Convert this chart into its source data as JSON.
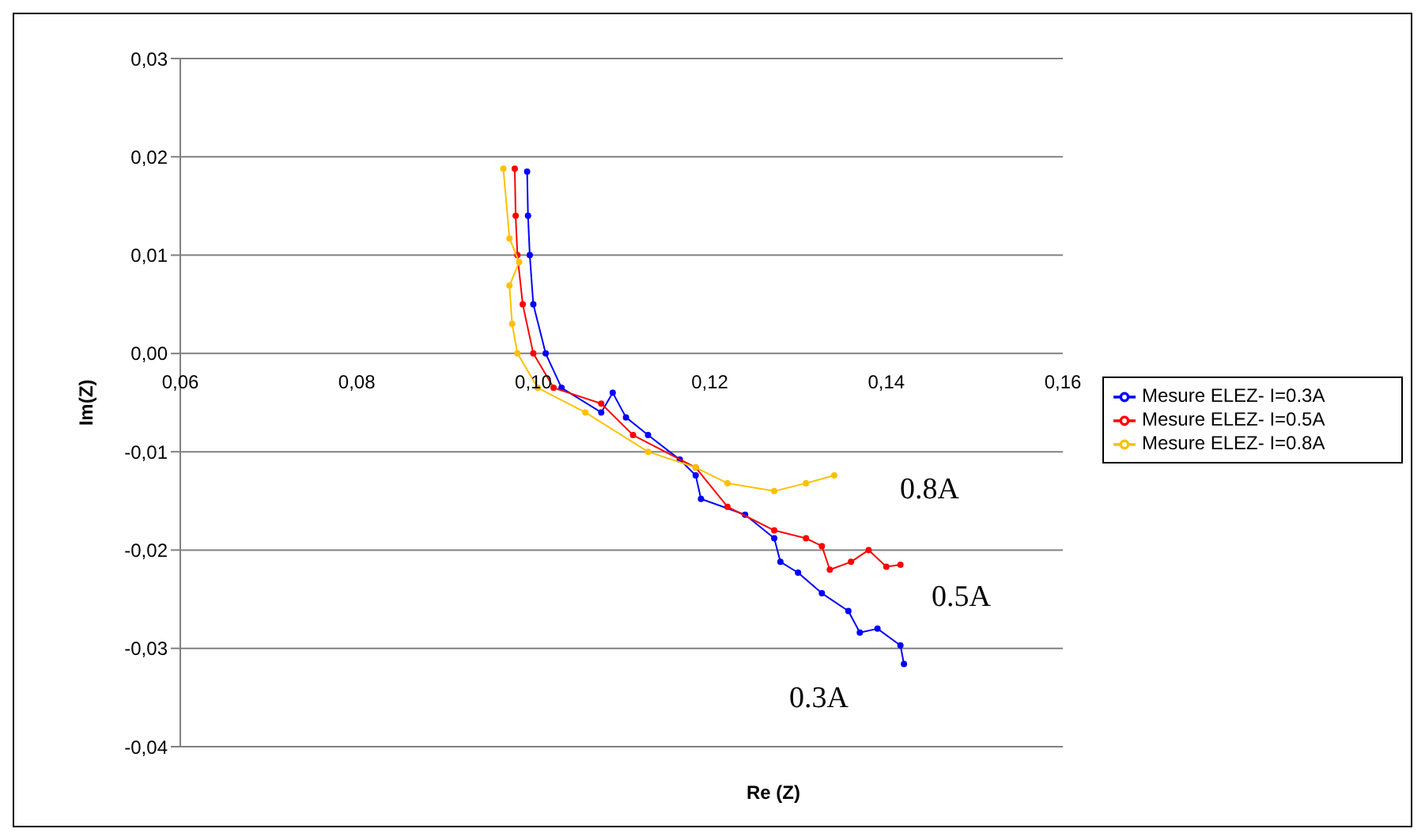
{
  "chart_data": {
    "type": "line",
    "xlabel": "Re (Z)",
    "ylabel": "Im(Z)",
    "xlim": [
      0.06,
      0.16
    ],
    "xticks": [
      {
        "value": 0.06,
        "label": "0,06"
      },
      {
        "value": 0.08,
        "label": "0,08"
      },
      {
        "value": 0.1,
        "label": "0,10"
      },
      {
        "value": 0.12,
        "label": "0,12"
      },
      {
        "value": 0.14,
        "label": "0,14"
      },
      {
        "value": 0.16,
        "label": "0,16"
      }
    ],
    "ylim": [
      -0.04,
      0.03
    ],
    "yticks": [
      {
        "value": -0.04,
        "label": "-0,04"
      },
      {
        "value": -0.03,
        "label": "-0,03"
      },
      {
        "value": -0.02,
        "label": "-0,02"
      },
      {
        "value": -0.01,
        "label": "-0,01"
      },
      {
        "value": 0,
        "label": "0,00"
      },
      {
        "value": 0.01,
        "label": "0,01"
      },
      {
        "value": 0.02,
        "label": "0,02"
      },
      {
        "value": 0.03,
        "label": "0,03"
      }
    ],
    "grid": "y",
    "legend": "right",
    "marker": "circle",
    "series": [
      {
        "name": "Mesure ELEZ- I=0.3A",
        "color": "#0000ff",
        "x": [
          0.0993,
          0.0994,
          0.0996,
          0.1,
          0.1014,
          0.1032,
          0.1077,
          0.109,
          0.1105,
          0.113,
          0.1166,
          0.1184,
          0.119,
          0.124,
          0.1273,
          0.128,
          0.13,
          0.1327,
          0.1357,
          0.137,
          0.139,
          0.1416,
          0.142
        ],
        "values": [
          0.0185,
          0.014,
          0.01,
          0.005,
          0,
          -0.0035,
          -0.006,
          -0.004,
          -0.0065,
          -0.0083,
          -0.0108,
          -0.0124,
          -0.0148,
          -0.0164,
          -0.0188,
          -0.0212,
          -0.0223,
          -0.0244,
          -0.0262,
          -0.0284,
          -0.028,
          -0.0297,
          -0.0316
        ]
      },
      {
        "name": "Mesure ELEZ- I=0.5A",
        "color": "#ff0000",
        "x": [
          0.0979,
          0.098,
          0.0982,
          0.0988,
          0.1,
          0.1023,
          0.1077,
          0.1113,
          0.1184,
          0.122,
          0.1273,
          0.1309,
          0.1327,
          0.1336,
          0.136,
          0.138,
          0.14,
          0.1416
        ],
        "values": [
          0.0188,
          0.014,
          0.01,
          0.005,
          0,
          -0.0035,
          -0.0051,
          -0.0083,
          -0.0116,
          -0.0156,
          -0.018,
          -0.0188,
          -0.0196,
          -0.022,
          -0.0212,
          -0.02,
          -0.0217,
          -0.0215
        ]
      },
      {
        "name": "Mesure ELEZ- I=0.8A",
        "color": "#ffc000",
        "x": [
          0.0966,
          0.0973,
          0.0984,
          0.0973,
          0.0976,
          0.0982,
          0.1005,
          0.1059,
          0.113,
          0.1184,
          0.122,
          0.1273,
          0.1309,
          0.1341
        ],
        "values": [
          0.0188,
          0.0117,
          0.0093,
          0.0069,
          0.003,
          0,
          -0.0035,
          -0.006,
          -0.01,
          -0.0116,
          -0.0132,
          -0.014,
          -0.0132,
          -0.0124
        ]
      }
    ],
    "annotations": [
      "0.8A",
      "0.5A",
      "0.3A"
    ]
  }
}
